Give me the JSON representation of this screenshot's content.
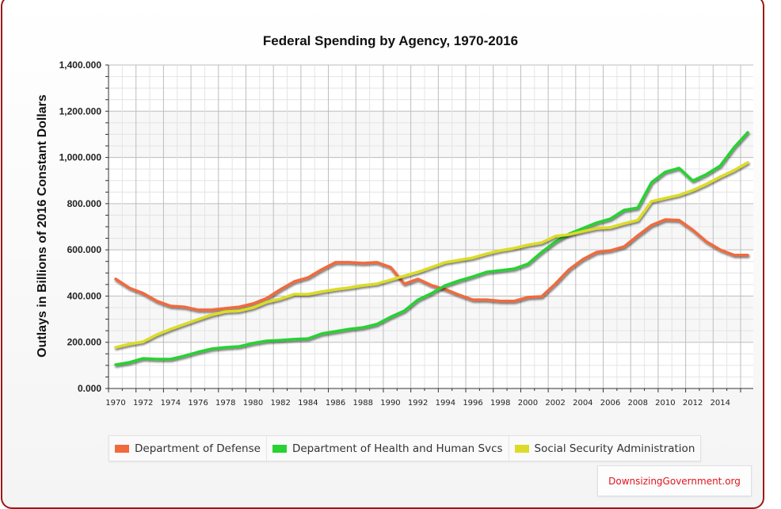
{
  "chart_data": {
    "type": "line",
    "title": "Federal Spending by Agency, 1970-2016",
    "xlabel": "",
    "ylabel": "Outlays in Billions of 2016 Constant Dollars",
    "ylim": [
      0,
      1400
    ],
    "xlim": [
      1970,
      2016
    ],
    "grid": true,
    "legend_position": "bottom",
    "y_ticks": [
      "0.000",
      "200.000",
      "400.000",
      "600.000",
      "800.000",
      "1,000.000",
      "1,200.000",
      "1,400.000"
    ],
    "y_tick_values": [
      0,
      200,
      400,
      600,
      800,
      1000,
      1200,
      1400
    ],
    "x_ticks": [
      "1970",
      "1972",
      "1974",
      "1976",
      "1978",
      "1980",
      "1982",
      "1984",
      "1986",
      "1988",
      "1990",
      "1992",
      "1994",
      "1996",
      "1998",
      "2000",
      "2002",
      "2004",
      "2006",
      "2008",
      "2010",
      "2012",
      "2014"
    ],
    "x": [
      1970,
      1971,
      1972,
      1973,
      1974,
      1975,
      1976,
      1977,
      1978,
      1979,
      1980,
      1981,
      1982,
      1983,
      1984,
      1985,
      1986,
      1987,
      1988,
      1989,
      1990,
      1991,
      1992,
      1993,
      1994,
      1995,
      1996,
      1997,
      1998,
      1999,
      2000,
      2001,
      2002,
      2003,
      2004,
      2005,
      2006,
      2007,
      2008,
      2009,
      2010,
      2011,
      2012,
      2013,
      2014,
      2015,
      2016
    ],
    "series": [
      {
        "name": "Department of Defense",
        "color": "#f06a3c",
        "values": [
          474,
          435,
          412,
          378,
          357,
          353,
          340,
          340,
          347,
          353,
          367,
          391,
          429,
          463,
          480,
          515,
          546,
          546,
          542,
          546,
          525,
          453,
          474,
          446,
          429,
          405,
          384,
          384,
          378,
          378,
          395,
          398,
          453,
          515,
          559,
          590,
          597,
          614,
          662,
          707,
          731,
          728,
          686,
          635,
          600,
          577,
          577
        ]
      },
      {
        "name": "Department of Health and Human Svcs",
        "color": "#28d232",
        "values": [
          103,
          113,
          130,
          127,
          127,
          141,
          158,
          172,
          178,
          182,
          196,
          206,
          209,
          213,
          216,
          237,
          247,
          257,
          264,
          278,
          309,
          336,
          384,
          412,
          446,
          467,
          484,
          504,
          511,
          518,
          539,
          590,
          635,
          669,
          693,
          717,
          734,
          772,
          782,
          892,
          937,
          954,
          899,
          927,
          964,
          1043,
          1108
        ]
      },
      {
        "name": "Social Security Administration",
        "color": "#dcdc28",
        "values": [
          178,
          192,
          202,
          233,
          257,
          278,
          299,
          319,
          333,
          336,
          350,
          374,
          388,
          408,
          408,
          419,
          429,
          436,
          446,
          453,
          470,
          487,
          504,
          525,
          546,
          556,
          566,
          583,
          597,
          607,
          621,
          631,
          659,
          666,
          680,
          693,
          697,
          714,
          728,
          810,
          824,
          837,
          858,
          885,
          916,
          944,
          978
        ]
      }
    ]
  },
  "legend": {
    "items": [
      {
        "label": "Department of Defense",
        "color": "#f06a3c"
      },
      {
        "label": "Department of Health and Human Svcs",
        "color": "#28d232"
      },
      {
        "label": "Social Security Administration",
        "color": "#dcdc28"
      }
    ]
  },
  "credit": "DownsizingGovernment.org"
}
